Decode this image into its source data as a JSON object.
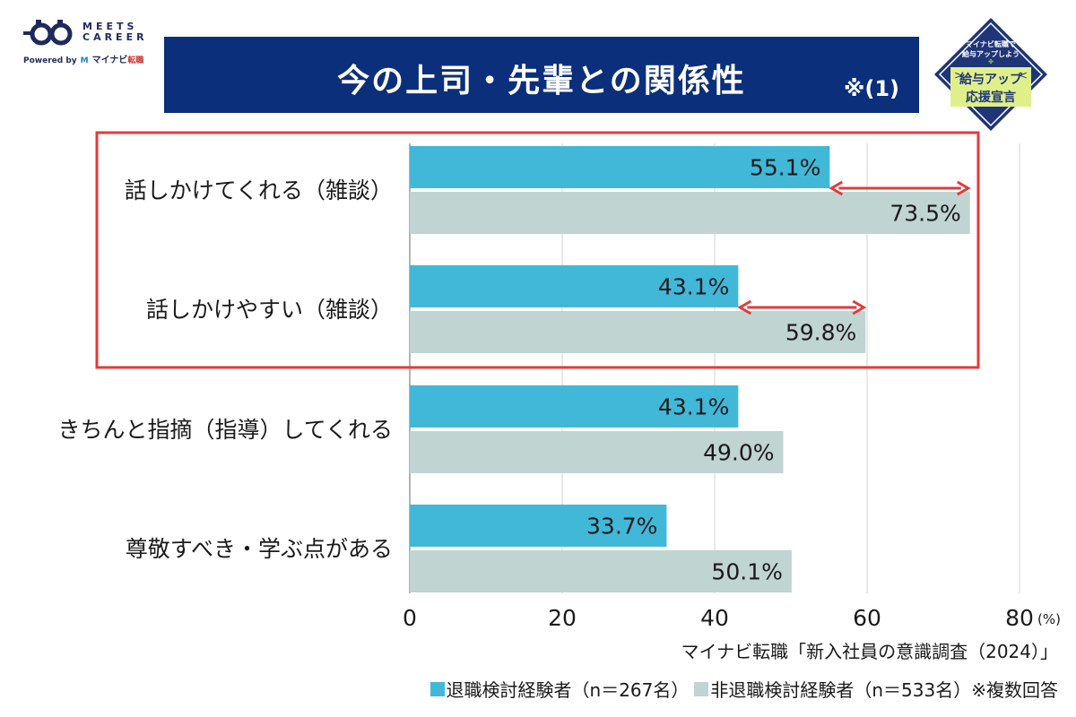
{
  "logo": {
    "name": "MEETS CAREER",
    "powered": "Powered by",
    "brand": "マイナビ",
    "brand_sub": "転職"
  },
  "title": {
    "text": "今の上司・先輩との関係性",
    "note": "※(1)"
  },
  "badge": {
    "line1": "マイナビ転職で",
    "line2": "給与アップしよう",
    "line3": "給与アップ",
    "line4": "応援宣言"
  },
  "colors": {
    "banner": "#0c2f7c",
    "series1": "#41b8d8",
    "series2": "#c0d4d2",
    "highlight": "#e03b3b",
    "gridline": "#d3d3d3"
  },
  "chart_data": {
    "type": "bar",
    "orientation": "horizontal",
    "title": "今の上司・先輩との関係性",
    "categories": [
      "話しかけてくれる（雑談）",
      "話しかけやすい（雑談）",
      "きちんと指摘（指導）してくれる",
      "尊敬すべき・学ぶ点がある"
    ],
    "series": [
      {
        "name": "退職検討経験者（n＝267名）",
        "values": [
          55.1,
          43.1,
          43.1,
          33.7
        ]
      },
      {
        "name": "非退職検討経験者（n＝533名）",
        "values": [
          73.5,
          59.8,
          49.0,
          50.1
        ]
      }
    ],
    "value_labels": [
      [
        "55.1%",
        "43.1%",
        "43.1%",
        "33.7%"
      ],
      [
        "73.5%",
        "59.8%",
        "49.0%",
        "50.1%"
      ]
    ],
    "xlim": [
      0,
      80
    ],
    "xticks": [
      0,
      20,
      40,
      60,
      80
    ],
    "x_unit": "(%)",
    "grid": true,
    "highlighted_categories": [
      0,
      1
    ],
    "gap_arrows": [
      0,
      1
    ],
    "legend_position": "bottom-right"
  },
  "footer": {
    "source": "マイナビ転職「新入社員の意識調査（2024）」",
    "legend1": "退職検討経験者（n＝267名）",
    "legend2": "非退職検討経験者（n＝533名）",
    "note": "※複数回答"
  }
}
